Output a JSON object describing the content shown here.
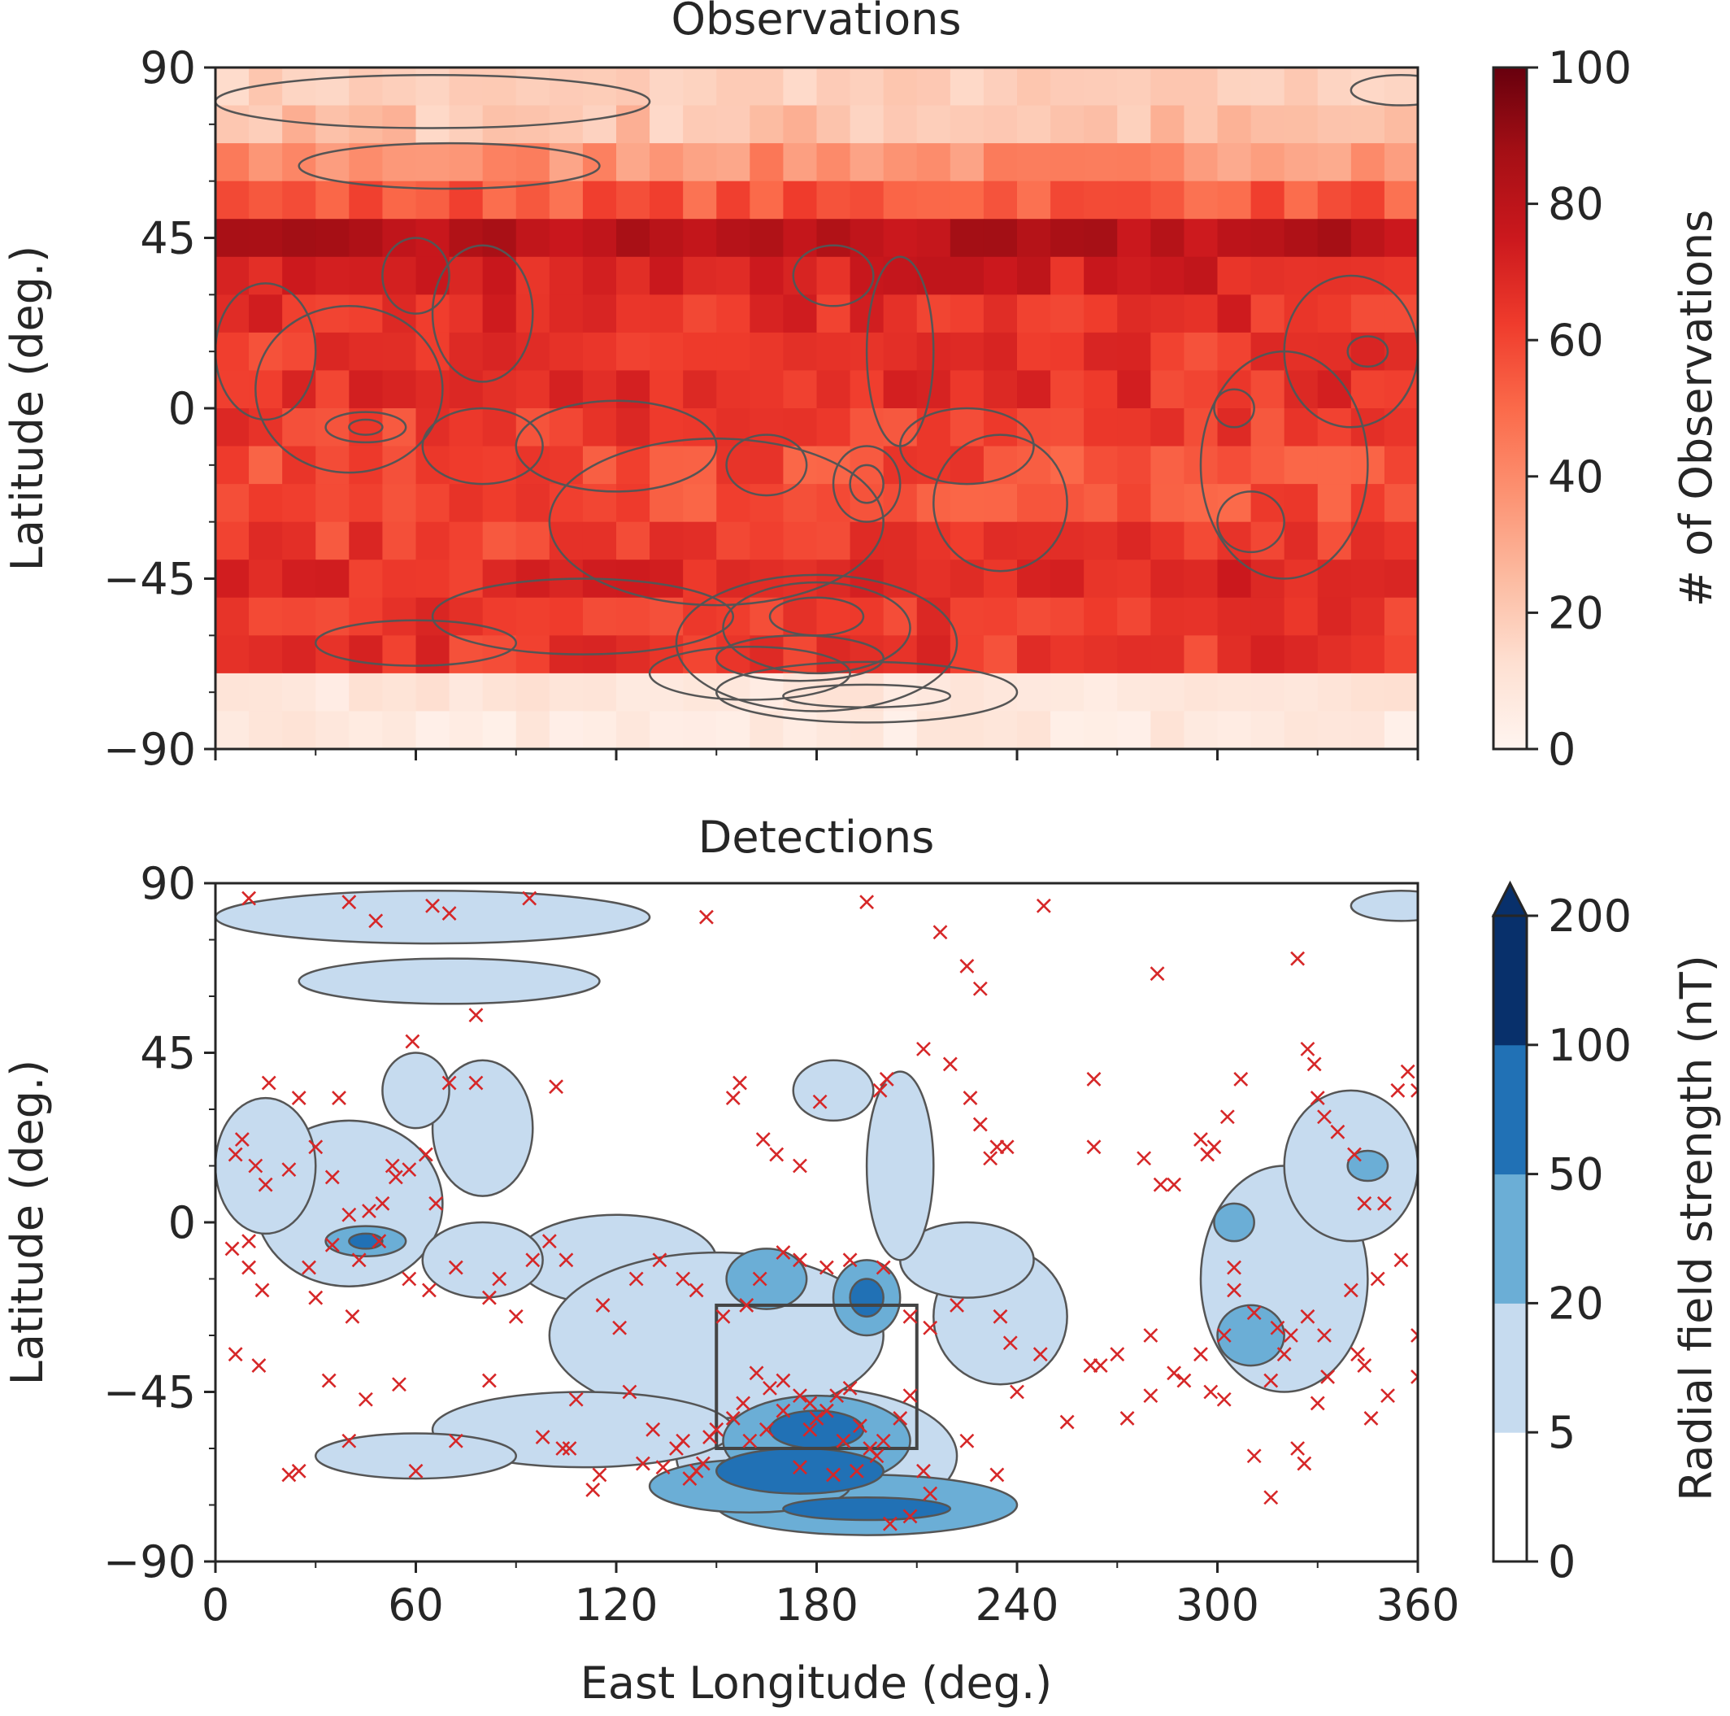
{
  "colors": {
    "obs_ramp": [
      "#fff5f0",
      "#fee0d2",
      "#fcbba1",
      "#fc9272",
      "#fb6a4a",
      "#ef3b2c",
      "#cb181d",
      "#a50f15",
      "#67000d"
    ],
    "field_levels": [
      "#ffffff",
      "#c6dbef",
      "#6baed6",
      "#2171b5",
      "#08306b"
    ],
    "marker": "#d62728",
    "contour": "#555555",
    "axis": "#262626"
  },
  "chart_data": [
    {
      "type": "heatmap",
      "title": "Observations",
      "xlabel": "",
      "ylabel": "Latitude (deg.)",
      "xlim": [
        0,
        360
      ],
      "ylim": [
        -90,
        90
      ],
      "x_ticks": [
        "0",
        "60",
        "120",
        "180",
        "240",
        "300",
        "360"
      ],
      "y_ticks": [
        "90",
        "45",
        "0",
        "−45",
        "−90"
      ],
      "y_tick_values": [
        90,
        45,
        0,
        -45,
        -90
      ],
      "colorbar": {
        "label": "# of Observations",
        "ticks": [
          "0",
          "20",
          "40",
          "60",
          "80",
          "100"
        ],
        "tick_values": [
          0,
          20,
          40,
          60,
          80,
          100
        ],
        "range": [
          0,
          100
        ]
      },
      "cell_size_deg": [
        10,
        10
      ],
      "lat_bands": [
        {
          "lat_range": [
            80,
            90
          ],
          "mean": 18
        },
        {
          "lat_range": [
            70,
            80
          ],
          "mean": 22
        },
        {
          "lat_range": [
            60,
            70
          ],
          "mean": 38
        },
        {
          "lat_range": [
            50,
            60
          ],
          "mean": 55
        },
        {
          "lat_range": [
            40,
            50
          ],
          "mean": 80
        },
        {
          "lat_range": [
            30,
            40
          ],
          "mean": 72
        },
        {
          "lat_range": [
            20,
            30
          ],
          "mean": 66
        },
        {
          "lat_range": [
            10,
            20
          ],
          "mean": 63
        },
        {
          "lat_range": [
            0,
            10
          ],
          "mean": 66
        },
        {
          "lat_range": [
            -10,
            0
          ],
          "mean": 62
        },
        {
          "lat_range": [
            -20,
            -10
          ],
          "mean": 58
        },
        {
          "lat_range": [
            -30,
            -20
          ],
          "mean": 58
        },
        {
          "lat_range": [
            -40,
            -30
          ],
          "mean": 62
        },
        {
          "lat_range": [
            -50,
            -40
          ],
          "mean": 68
        },
        {
          "lat_range": [
            -60,
            -50
          ],
          "mean": 64
        },
        {
          "lat_range": [
            -70,
            -60
          ],
          "mean": 64
        },
        {
          "lat_range": [
            -80,
            -70
          ],
          "mean": 9
        },
        {
          "lat_range": [
            -90,
            -80
          ],
          "mean": 7
        }
      ]
    },
    {
      "type": "scatter",
      "title": "Detections",
      "xlabel": "East Longitude (deg.)",
      "ylabel": "Latitude (deg.)",
      "xlim": [
        0,
        360
      ],
      "ylim": [
        -90,
        90
      ],
      "x_ticks": [
        "0",
        "60",
        "120",
        "180",
        "240",
        "300",
        "360"
      ],
      "x_tick_values": [
        0,
        60,
        120,
        180,
        240,
        300,
        360
      ],
      "y_ticks": [
        "90",
        "45",
        "0",
        "−45",
        "−90"
      ],
      "y_tick_values": [
        90,
        45,
        0,
        -45,
        -90
      ],
      "colorbar": {
        "label": "Radial field strength (nT)",
        "ticks": [
          "0",
          "5",
          "20",
          "50",
          "100",
          "200"
        ],
        "tick_values": [
          0,
          5,
          20,
          50,
          100,
          200
        ],
        "extend": "max"
      },
      "highlight_box": {
        "lon": [
          150,
          210
        ],
        "lat": [
          -60,
          -22
        ]
      },
      "field_regions": [
        {
          "lon": 180,
          "lat": -62,
          "rx": 42,
          "ry": 18,
          "level": 1
        },
        {
          "lon": 180,
          "lat": -58,
          "rx": 28,
          "ry": 12,
          "level": 2
        },
        {
          "lon": 180,
          "lat": -55,
          "rx": 14,
          "ry": 5,
          "level": 3
        },
        {
          "lon": 175,
          "lat": -66,
          "rx": 25,
          "ry": 6,
          "level": 3
        },
        {
          "lon": 195,
          "lat": -75,
          "rx": 45,
          "ry": 8,
          "level": 2
        },
        {
          "lon": 195,
          "lat": -76,
          "rx": 25,
          "ry": 3,
          "level": 3
        },
        {
          "lon": 160,
          "lat": -70,
          "rx": 30,
          "ry": 7,
          "level": 2
        },
        {
          "lon": 195,
          "lat": -20,
          "rx": 10,
          "ry": 10,
          "level": 2
        },
        {
          "lon": 195,
          "lat": -20,
          "rx": 5,
          "ry": 5,
          "level": 3
        },
        {
          "lon": 165,
          "lat": -15,
          "rx": 12,
          "ry": 8,
          "level": 2
        },
        {
          "lon": 120,
          "lat": -10,
          "rx": 30,
          "ry": 12,
          "level": 1
        },
        {
          "lon": 150,
          "lat": -30,
          "rx": 50,
          "ry": 22,
          "level": 1
        },
        {
          "lon": 110,
          "lat": -55,
          "rx": 45,
          "ry": 10,
          "level": 1
        },
        {
          "lon": 60,
          "lat": -62,
          "rx": 30,
          "ry": 6,
          "level": 1
        },
        {
          "lon": 40,
          "lat": 5,
          "rx": 28,
          "ry": 22,
          "level": 1
        },
        {
          "lon": 45,
          "lat": -5,
          "rx": 12,
          "ry": 4,
          "level": 2
        },
        {
          "lon": 45,
          "lat": -5,
          "rx": 5,
          "ry": 2,
          "level": 3
        },
        {
          "lon": 15,
          "lat": 15,
          "rx": 15,
          "ry": 18,
          "level": 1
        },
        {
          "lon": 80,
          "lat": 25,
          "rx": 15,
          "ry": 18,
          "level": 1
        },
        {
          "lon": 60,
          "lat": 35,
          "rx": 10,
          "ry": 10,
          "level": 1
        },
        {
          "lon": 80,
          "lat": -10,
          "rx": 18,
          "ry": 10,
          "level": 1
        },
        {
          "lon": 235,
          "lat": -25,
          "rx": 20,
          "ry": 18,
          "level": 1
        },
        {
          "lon": 225,
          "lat": -10,
          "rx": 20,
          "ry": 10,
          "level": 1
        },
        {
          "lon": 205,
          "lat": 15,
          "rx": 10,
          "ry": 25,
          "level": 1
        },
        {
          "lon": 320,
          "lat": -15,
          "rx": 25,
          "ry": 30,
          "level": 1
        },
        {
          "lon": 310,
          "lat": -30,
          "rx": 10,
          "ry": 8,
          "level": 2
        },
        {
          "lon": 340,
          "lat": 15,
          "rx": 20,
          "ry": 20,
          "level": 1
        },
        {
          "lon": 345,
          "lat": 15,
          "rx": 6,
          "ry": 4,
          "level": 2
        },
        {
          "lon": 305,
          "lat": 0,
          "rx": 6,
          "ry": 5,
          "level": 2
        },
        {
          "lon": 65,
          "lat": 81,
          "rx": 65,
          "ry": 7,
          "level": 1
        },
        {
          "lon": 70,
          "lat": 64,
          "rx": 45,
          "ry": 6,
          "level": 1
        },
        {
          "lon": 355,
          "lat": 84,
          "rx": 15,
          "ry": 4,
          "level": 1
        },
        {
          "lon": 185,
          "lat": 35,
          "rx": 12,
          "ry": 8,
          "level": 1
        }
      ],
      "detections": [
        [
          10,
          86
        ],
        [
          40,
          85
        ],
        [
          48,
          80
        ],
        [
          65,
          84
        ],
        [
          70,
          82
        ],
        [
          94,
          86
        ],
        [
          147,
          81
        ],
        [
          195,
          85
        ],
        [
          217,
          77
        ],
        [
          225,
          68
        ],
        [
          229,
          62
        ],
        [
          248,
          84
        ],
        [
          282,
          66
        ],
        [
          324,
          70
        ],
        [
          78,
          55
        ],
        [
          59,
          48
        ],
        [
          16,
          37
        ],
        [
          25,
          33
        ],
        [
          37,
          33
        ],
        [
          70,
          37
        ],
        [
          78,
          37
        ],
        [
          102,
          36
        ],
        [
          157,
          37
        ],
        [
          155,
          33
        ],
        [
          164,
          22
        ],
        [
          168,
          18
        ],
        [
          175,
          15
        ],
        [
          181,
          32
        ],
        [
          199,
          35
        ],
        [
          201,
          38
        ],
        [
          212,
          46
        ],
        [
          220,
          42
        ],
        [
          226,
          33
        ],
        [
          229,
          26
        ],
        [
          232,
          17
        ],
        [
          234,
          20
        ],
        [
          237,
          20
        ],
        [
          263,
          38
        ],
        [
          263,
          20
        ],
        [
          278,
          17
        ],
        [
          283,
          10
        ],
        [
          287,
          10
        ],
        [
          295,
          22
        ],
        [
          297,
          18
        ],
        [
          299,
          20
        ],
        [
          303,
          28
        ],
        [
          307,
          38
        ],
        [
          327,
          46
        ],
        [
          329,
          42
        ],
        [
          330,
          33
        ],
        [
          332,
          28
        ],
        [
          336,
          24
        ],
        [
          341,
          18
        ],
        [
          344,
          5
        ],
        [
          350,
          5
        ],
        [
          354,
          35
        ],
        [
          357,
          40
        ],
        [
          360,
          35
        ],
        [
          6,
          18
        ],
        [
          8,
          22
        ],
        [
          12,
          15
        ],
        [
          15,
          10
        ],
        [
          22,
          14
        ],
        [
          30,
          20
        ],
        [
          35,
          12
        ],
        [
          53,
          15
        ],
        [
          58,
          14
        ],
        [
          63,
          18
        ],
        [
          54,
          12
        ],
        [
          66,
          5
        ],
        [
          50,
          5
        ],
        [
          46,
          3
        ],
        [
          40,
          2
        ],
        [
          5,
          -7
        ],
        [
          10,
          -5
        ],
        [
          10,
          -12
        ],
        [
          14,
          -18
        ],
        [
          28,
          -12
        ],
        [
          30,
          -20
        ],
        [
          35,
          -6
        ],
        [
          41,
          -25
        ],
        [
          43,
          -10
        ],
        [
          49,
          -5
        ],
        [
          58,
          -15
        ],
        [
          64,
          -18
        ],
        [
          72,
          -12
        ],
        [
          82,
          -20
        ],
        [
          85,
          -15
        ],
        [
          90,
          -25
        ],
        [
          95,
          -10
        ],
        [
          100,
          -5
        ],
        [
          105,
          -10
        ],
        [
          116,
          -22
        ],
        [
          121,
          -28
        ],
        [
          126,
          -15
        ],
        [
          133,
          -10
        ],
        [
          140,
          -15
        ],
        [
          144,
          -18
        ],
        [
          152,
          -25
        ],
        [
          159,
          -22
        ],
        [
          163,
          -15
        ],
        [
          170,
          -8
        ],
        [
          175,
          -10
        ],
        [
          183,
          -12
        ],
        [
          190,
          -10
        ],
        [
          200,
          -12
        ],
        [
          208,
          -25
        ],
        [
          214,
          -28
        ],
        [
          222,
          -22
        ],
        [
          235,
          -25
        ],
        [
          238,
          -32
        ],
        [
          247,
          -35
        ],
        [
          265,
          -38
        ],
        [
          270,
          -35
        ],
        [
          280,
          -30
        ],
        [
          287,
          -40
        ],
        [
          295,
          -35
        ],
        [
          302,
          -30
        ],
        [
          305,
          -12
        ],
        [
          305,
          -18
        ],
        [
          311,
          -24
        ],
        [
          318,
          -28
        ],
        [
          322,
          -30
        ],
        [
          327,
          -25
        ],
        [
          332,
          -30
        ],
        [
          340,
          -18
        ],
        [
          348,
          -15
        ],
        [
          355,
          -10
        ],
        [
          360,
          -30
        ],
        [
          6,
          -35
        ],
        [
          13,
          -38
        ],
        [
          34,
          -42
        ],
        [
          45,
          -47
        ],
        [
          55,
          -43
        ],
        [
          72,
          -58
        ],
        [
          82,
          -42
        ],
        [
          98,
          -57
        ],
        [
          104,
          -60
        ],
        [
          106,
          -60
        ],
        [
          108,
          -47
        ],
        [
          113,
          -71
        ],
        [
          115,
          -67
        ],
        [
          124,
          -45
        ],
        [
          128,
          -64
        ],
        [
          131,
          -55
        ],
        [
          134,
          -65
        ],
        [
          138,
          -60
        ],
        [
          140,
          -58
        ],
        [
          142,
          -68
        ],
        [
          144,
          -66
        ],
        [
          146,
          -64
        ],
        [
          148,
          -57
        ],
        [
          150,
          -55
        ],
        [
          155,
          -52
        ],
        [
          158,
          -48
        ],
        [
          162,
          -40
        ],
        [
          166,
          -44
        ],
        [
          170,
          -42
        ],
        [
          175,
          -46
        ],
        [
          178,
          -48
        ],
        [
          180,
          -52
        ],
        [
          183,
          -50
        ],
        [
          186,
          -46
        ],
        [
          190,
          -44
        ],
        [
          193,
          -54
        ],
        [
          196,
          -60
        ],
        [
          198,
          -62
        ],
        [
          200,
          -58
        ],
        [
          205,
          -52
        ],
        [
          208,
          -46
        ],
        [
          212,
          -66
        ],
        [
          225,
          -58
        ],
        [
          234,
          -67
        ],
        [
          240,
          -45
        ],
        [
          255,
          -53
        ],
        [
          262,
          -38
        ],
        [
          273,
          -52
        ],
        [
          280,
          -46
        ],
        [
          290,
          -42
        ],
        [
          298,
          -45
        ],
        [
          302,
          -47
        ],
        [
          311,
          -62
        ],
        [
          316,
          -42
        ],
        [
          324,
          -60
        ],
        [
          326,
          -64
        ],
        [
          333,
          -41
        ],
        [
          344,
          -38
        ],
        [
          346,
          -52
        ],
        [
          351,
          -46
        ],
        [
          360,
          -41
        ],
        [
          320,
          -35
        ],
        [
          342,
          -35
        ],
        [
          316,
          -73
        ],
        [
          330,
          -48
        ],
        [
          170,
          -50
        ],
        [
          188,
          -58
        ],
        [
          178,
          -55
        ],
        [
          160,
          -58
        ],
        [
          165,
          -55
        ],
        [
          192,
          -66
        ],
        [
          175,
          -65
        ],
        [
          185,
          -67
        ],
        [
          202,
          -80
        ],
        [
          208,
          -78
        ],
        [
          214,
          -72
        ],
        [
          40,
          -58
        ],
        [
          60,
          -66
        ],
        [
          25,
          -66
        ],
        [
          22,
          -67
        ]
      ]
    }
  ]
}
